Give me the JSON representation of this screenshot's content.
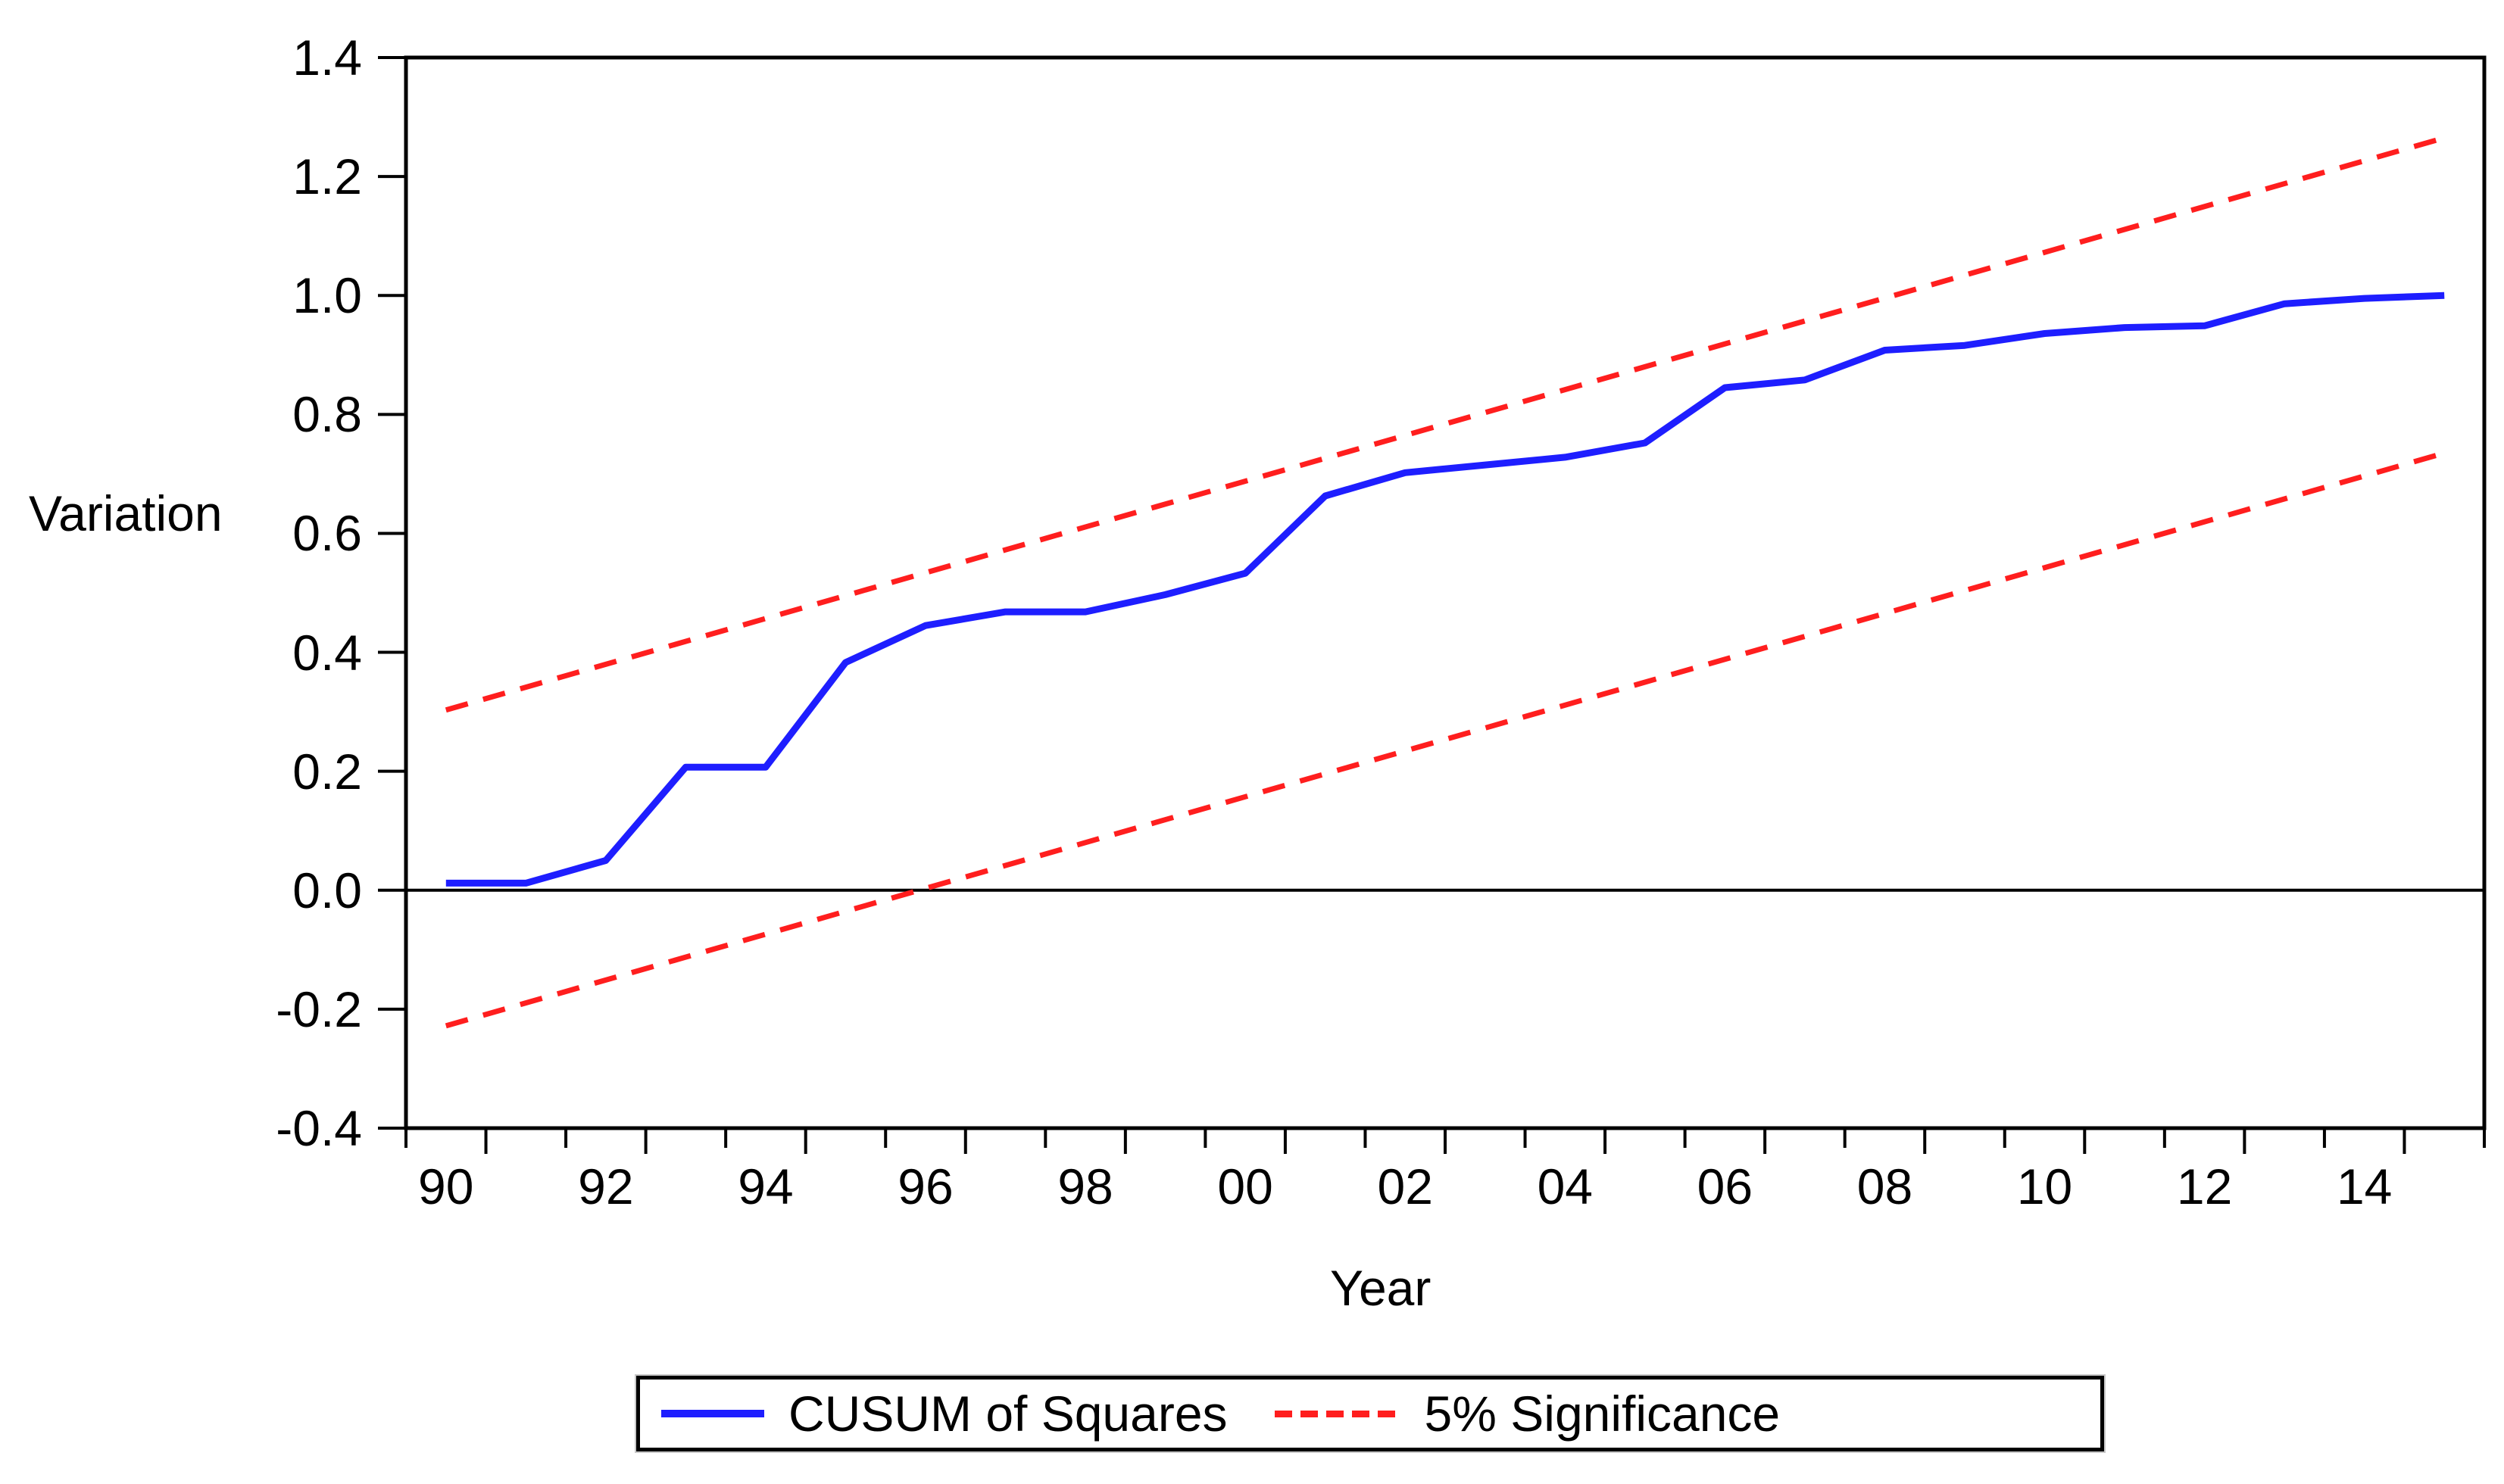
{
  "figure_background": "#ffffff",
  "axes": {
    "y_title": "Variation",
    "x_title": "Year",
    "y_tick_labels": [
      "1.4",
      "1.2",
      "1.0",
      "0.8",
      "0.6",
      "0.4",
      "0.2",
      "0.0",
      "-0.2",
      "-0.4"
    ],
    "x_tick_labels": [
      "90",
      "92",
      "94",
      "96",
      "98",
      "00",
      "02",
      "04",
      "06",
      "08",
      "10",
      "12",
      "14"
    ]
  },
  "legend": {
    "items": [
      {
        "label": "CUSUM of Squares",
        "color": "#1e1eff",
        "style": "solid"
      },
      {
        "label": "5% Significance",
        "color": "#ff1e1e",
        "style": "dashed"
      }
    ]
  },
  "colors": {
    "cusum_line": "#1e1eff",
    "significance_line": "#ff1e1e",
    "axis": "#000000",
    "zero_line": "#000000"
  },
  "chart_data": {
    "type": "line",
    "title": "",
    "xlabel": "Year",
    "ylabel": "Variation",
    "xlim": [
      1989.5,
      2015.5
    ],
    "ylim": [
      -0.4,
      1.4
    ],
    "grid": false,
    "legend_position": "bottom",
    "y_ticks": [
      1.4,
      1.2,
      1.0,
      0.8,
      0.6,
      0.4,
      0.2,
      0.0,
      -0.2,
      -0.4
    ],
    "x_label_years": [
      1990,
      1992,
      1994,
      1996,
      1998,
      2000,
      2002,
      2004,
      2006,
      2008,
      2010,
      2012,
      2014
    ],
    "x_boundary_tick_start": 1989.5,
    "x_boundary_tick_step": 1,
    "x_boundary_tick_end": 2015.5,
    "zero_line": 0.0,
    "series": [
      {
        "name": "CUSUM of Squares",
        "style": "solid",
        "color": "#1e1eff",
        "x": [
          1990,
          1991,
          1992,
          1993,
          1994,
          1995,
          1996,
          1997,
          1998,
          1999,
          2000,
          2001,
          2002,
          2003,
          2004,
          2005,
          2006,
          2007,
          2008,
          2009,
          2010,
          2011,
          2012,
          2013,
          2014,
          2015
        ],
        "y": [
          0.012,
          0.012,
          0.05,
          0.207,
          0.207,
          0.383,
          0.445,
          0.468,
          0.468,
          0.497,
          0.533,
          0.663,
          0.702,
          0.715,
          0.728,
          0.752,
          0.845,
          0.858,
          0.908,
          0.916,
          0.936,
          0.946,
          0.949,
          0.986,
          0.995,
          1.0
        ]
      },
      {
        "name": "5% Significance (upper bound)",
        "style": "dashed",
        "color": "#ff1e1e",
        "x": [
          1990,
          2015
        ],
        "y": [
          0.303,
          1.265
        ]
      },
      {
        "name": "5% Significance (lower bound)",
        "style": "dashed",
        "color": "#ff1e1e",
        "x": [
          1990,
          2015
        ],
        "y": [
          -0.228,
          0.735
        ]
      }
    ]
  }
}
